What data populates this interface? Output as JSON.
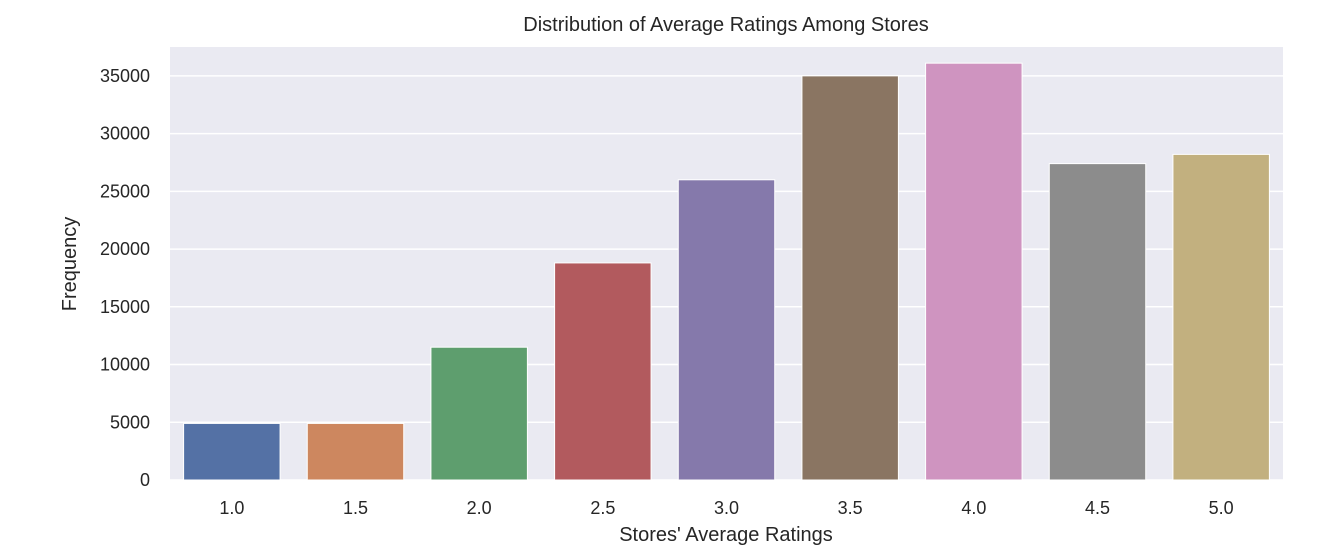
{
  "chart_data": {
    "type": "bar",
    "title": "Distribution of Average Ratings Among Stores",
    "xlabel": "Stores' Average Ratings",
    "ylabel": "Frequency",
    "categories": [
      "1.0",
      "1.5",
      "2.0",
      "2.5",
      "3.0",
      "3.5",
      "4.0",
      "4.5",
      "5.0"
    ],
    "values": [
      4900,
      4900,
      11500,
      18800,
      26000,
      35000,
      36100,
      27400,
      28200
    ],
    "colors": [
      "#5471A5",
      "#CD875F",
      "#5E9E6E",
      "#B25A5E",
      "#8579AB",
      "#8A7562",
      "#CF94C0",
      "#8C8C8C",
      "#C2B07F"
    ],
    "ylim": [
      0,
      37500
    ],
    "yticks": [
      0,
      5000,
      10000,
      15000,
      20000,
      25000,
      30000,
      35000
    ],
    "grid": true,
    "style": {
      "plot_background": "#EAEAF2",
      "grid_color": "#FFFFFF"
    }
  }
}
